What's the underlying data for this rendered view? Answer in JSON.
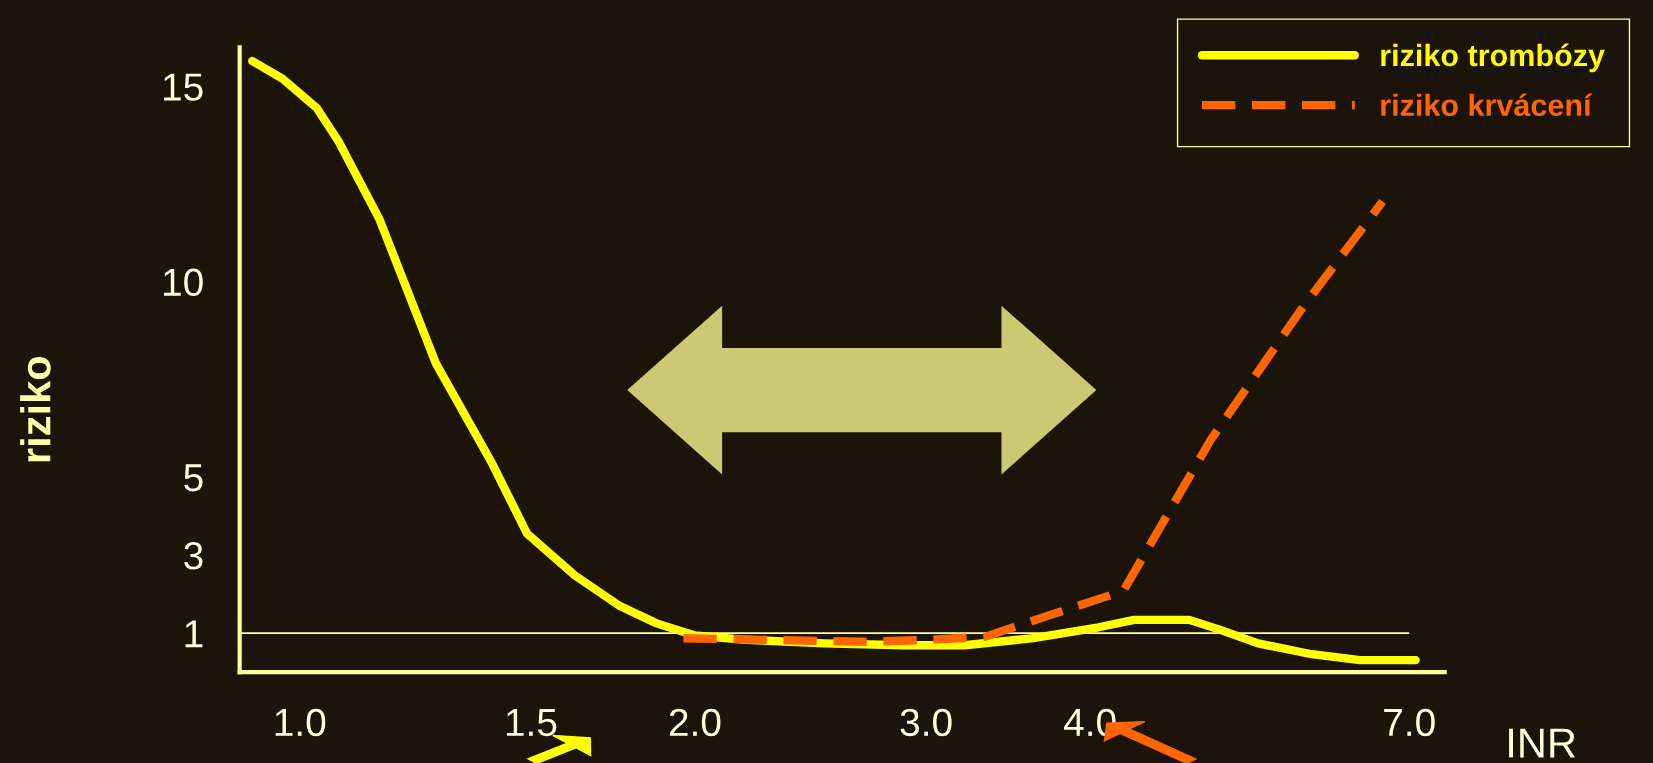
{
  "chart_data": {
    "type": "line",
    "xlabel": "INR",
    "ylabel": "riziko",
    "log": "x",
    "xlim": [
      0.9,
      7.45
    ],
    "ylim": [
      0,
      16
    ],
    "xticks": [
      {
        "value": 1,
        "label": "1.0"
      },
      {
        "value": 1.5,
        "label": "1.5"
      },
      {
        "value": 2,
        "label": "2.0"
      },
      {
        "value": 3,
        "label": "3.0"
      },
      {
        "value": 4,
        "label": "4.0"
      },
      {
        "value": 7,
        "label": "7.0"
      }
    ],
    "yticks": [
      1,
      3,
      5,
      10,
      15
    ],
    "ref_lines": [
      {
        "axis": "y",
        "value": 1,
        "color": "#ffff99",
        "line_style": "solid"
      }
    ],
    "legend": "top right",
    "grid": false,
    "marker": "none",
    "series": [
      {
        "name": "riziko trombózy",
        "color": "#ffff00",
        "line_style": "solid",
        "x": [
          0.92,
          0.97,
          1.03,
          1.07,
          1.15,
          1.27,
          1.4,
          1.49,
          1.62,
          1.75,
          1.87,
          2.0,
          2.19,
          2.51,
          2.88,
          3.21,
          3.62,
          4.06,
          4.32,
          4.76,
          5.02,
          5.37,
          5.9,
          6.42,
          7.08
        ],
        "values": [
          15.65,
          15.2,
          14.45,
          13.6,
          11.6,
          7.9,
          5.37,
          3.55,
          2.48,
          1.71,
          1.25,
          0.94,
          0.83,
          0.74,
          0.69,
          0.69,
          0.87,
          1.15,
          1.34,
          1.34,
          1.09,
          0.74,
          0.46,
          0.31,
          0.31
        ]
      },
      {
        "name": "riziko krvácení",
        "color": "#ff6600",
        "line_style": "dashed",
        "x": [
          1.96,
          2.42,
          2.7,
          3.03,
          3.33,
          3.68,
          4.24,
          4.94,
          5.81,
          6.68
        ],
        "values": [
          0.87,
          0.81,
          0.78,
          0.83,
          0.91,
          1.4,
          2.08,
          5.94,
          9.35,
          12.05
        ]
      }
    ]
  }
}
